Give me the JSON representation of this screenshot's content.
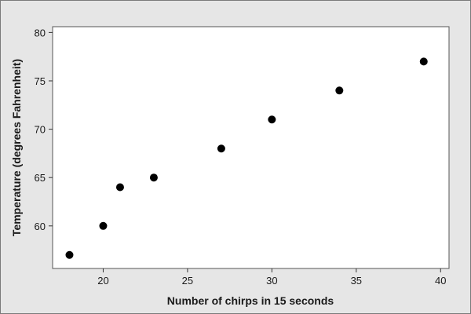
{
  "chart_data": {
    "type": "scatter",
    "title": "",
    "xlabel": "Number of chirps in 15 seconds",
    "ylabel": "Temperature (degrees Fahrenheit)",
    "xlim": [
      17,
      40.5
    ],
    "ylim": [
      55.6,
      80.6
    ],
    "xticks": [
      20,
      25,
      30,
      35,
      40
    ],
    "yticks": [
      60,
      65,
      70,
      75,
      80
    ],
    "grid": false,
    "legend": "none",
    "point_color": "#000000",
    "points": [
      {
        "x": 18,
        "y": 57
      },
      {
        "x": 20,
        "y": 60
      },
      {
        "x": 21,
        "y": 64
      },
      {
        "x": 23,
        "y": 65
      },
      {
        "x": 27,
        "y": 68
      },
      {
        "x": 30,
        "y": 71
      },
      {
        "x": 34,
        "y": 74
      },
      {
        "x": 39,
        "y": 77
      }
    ]
  }
}
